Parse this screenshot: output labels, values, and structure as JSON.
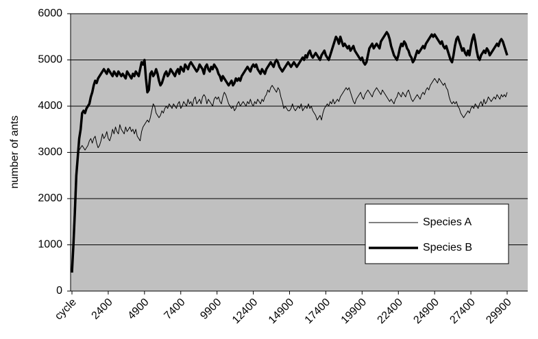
{
  "chart_data": {
    "type": "line",
    "ylabel": "number of ants",
    "categories": [
      "cycle",
      null,
      null,
      null,
      null,
      null,
      null,
      null,
      null,
      null,
      null,
      null,
      null,
      null,
      null,
      null,
      null,
      null,
      null,
      null,
      null,
      null,
      null,
      null,
      null,
      "2400",
      null,
      null,
      null,
      null,
      null,
      null,
      null,
      null,
      null,
      null,
      null,
      null,
      null,
      null,
      null,
      null,
      null,
      null,
      null,
      null,
      null,
      null,
      null,
      null,
      "4900",
      null,
      null,
      null,
      null,
      null,
      null,
      null,
      null,
      null,
      null,
      null,
      null,
      null,
      null,
      null,
      null,
      null,
      null,
      null,
      null,
      null,
      null,
      null,
      null,
      "7400",
      null,
      null,
      null,
      null,
      null,
      null,
      null,
      null,
      null,
      null,
      null,
      null,
      null,
      null,
      null,
      null,
      null,
      null,
      null,
      null,
      null,
      null,
      null,
      null,
      "9900",
      null,
      null,
      null,
      null,
      null,
      null,
      null,
      null,
      null,
      null,
      null,
      null,
      null,
      null,
      null,
      null,
      null,
      null,
      null,
      null,
      null,
      null,
      null,
      null,
      "12400",
      null,
      null,
      null,
      null,
      null,
      null,
      null,
      null,
      null,
      null,
      null,
      null,
      null,
      null,
      null,
      null,
      null,
      null,
      null,
      null,
      null,
      null,
      null,
      null,
      "14900",
      null,
      null,
      null,
      null,
      null,
      null,
      null,
      null,
      null,
      null,
      null,
      null,
      null,
      null,
      null,
      null,
      null,
      null,
      null,
      null,
      null,
      null,
      null,
      null,
      "17400",
      null,
      null,
      null,
      null,
      null,
      null,
      null,
      null,
      null,
      null,
      null,
      null,
      null,
      null,
      null,
      null,
      null,
      null,
      null,
      null,
      null,
      null,
      null,
      null,
      "19900",
      null,
      null,
      null,
      null,
      null,
      null,
      null,
      null,
      null,
      null,
      null,
      null,
      null,
      null,
      null,
      null,
      null,
      null,
      null,
      null,
      null,
      null,
      null,
      null,
      "22400",
      null,
      null,
      null,
      null,
      null,
      null,
      null,
      null,
      null,
      null,
      null,
      null,
      null,
      null,
      null,
      null,
      null,
      null,
      null,
      null,
      null,
      null,
      null,
      null,
      "24900",
      null,
      null,
      null,
      null,
      null,
      null,
      null,
      null,
      null,
      null,
      null,
      null,
      null,
      null,
      null,
      null,
      null,
      null,
      null,
      null,
      null,
      null,
      null,
      null,
      "27400",
      null,
      null,
      null,
      null,
      null,
      null,
      null,
      null,
      null,
      null,
      null,
      null,
      null,
      null,
      null,
      null,
      null,
      null,
      null,
      null,
      null,
      null,
      null,
      null,
      "29900"
    ],
    "series": [
      {
        "name": "Species A",
        "color": "#000000",
        "width": 1,
        "values": [
          400,
          1300,
          2100,
          2700,
          2900,
          3050,
          3100,
          3150,
          3100,
          3050,
          3100,
          3150,
          3250,
          3300,
          3200,
          3300,
          3350,
          3200,
          3100,
          3150,
          3250,
          3400,
          3300,
          3350,
          3450,
          3300,
          3250,
          3350,
          3500,
          3400,
          3550,
          3450,
          3400,
          3600,
          3500,
          3450,
          3400,
          3550,
          3450,
          3500,
          3550,
          3450,
          3500,
          3400,
          3500,
          3350,
          3300,
          3250,
          3450,
          3550,
          3600,
          3650,
          3700,
          3650,
          3750,
          3900,
          4050,
          4000,
          3850,
          3800,
          3750,
          3800,
          3900,
          3850,
          3950,
          4000,
          3950,
          4050,
          4000,
          3950,
          4050,
          4000,
          3950,
          4050,
          4100,
          3950,
          4000,
          4100,
          4050,
          4000,
          4150,
          4050,
          4100,
          4000,
          4150,
          4200,
          4050,
          4100,
          4150,
          4050,
          4200,
          4250,
          4200,
          4050,
          4150,
          4100,
          4050,
          4000,
          4150,
          4200,
          4150,
          4200,
          4100,
          4050,
          4200,
          4300,
          4250,
          4150,
          4050,
          4000,
          3950,
          4000,
          3900,
          3950,
          4050,
          4100,
          4000,
          4050,
          4100,
          4050,
          4000,
          4100,
          4050,
          4150,
          4050,
          4000,
          4100,
          4050,
          4150,
          4100,
          4050,
          4150,
          4100,
          4200,
          4250,
          4350,
          4300,
          4400,
          4450,
          4400,
          4350,
          4300,
          4400,
          4350,
          4200,
          4100,
          3950,
          4000,
          3950,
          3900,
          3900,
          3950,
          4050,
          3950,
          3900,
          3950,
          4000,
          3950,
          4050,
          3900,
          3950,
          4000,
          3950,
          4050,
          3950,
          4000,
          3900,
          3850,
          3800,
          3700,
          3750,
          3800,
          3700,
          3850,
          3950,
          4000,
          4050,
          4000,
          4100,
          4050,
          4150,
          4050,
          4100,
          4150,
          4100,
          4200,
          4250,
          4300,
          4350,
          4400,
          4350,
          4400,
          4300,
          4200,
          4100,
          4050,
          4150,
          4200,
          4250,
          4300,
          4200,
          4150,
          4250,
          4300,
          4350,
          4300,
          4250,
          4200,
          4300,
          4350,
          4400,
          4350,
          4300,
          4250,
          4350,
          4300,
          4250,
          4200,
          4150,
          4100,
          4150,
          4100,
          4050,
          4150,
          4200,
          4300,
          4250,
          4200,
          4300,
          4250,
          4200,
          4300,
          4350,
          4250,
          4150,
          4100,
          4150,
          4200,
          4250,
          4200,
          4150,
          4250,
          4300,
          4250,
          4350,
          4400,
          4350,
          4450,
          4500,
          4550,
          4600,
          4550,
          4500,
          4600,
          4550,
          4500,
          4450,
          4500,
          4400,
          4350,
          4200,
          4100,
          4050,
          4100,
          4050,
          4100,
          4000,
          3950,
          3850,
          3800,
          3750,
          3800,
          3850,
          3900,
          3850,
          3950,
          4000,
          3950,
          4050,
          4000,
          3950,
          4050,
          4100,
          4000,
          4150,
          4050,
          4100,
          4200,
          4150,
          4100,
          4150,
          4200,
          4150,
          4250,
          4200,
          4150,
          4250,
          4200,
          4250,
          4200,
          4300
        ]
      },
      {
        "name": "Species B",
        "color": "#000000",
        "width": 3.5,
        "values": [
          400,
          1000,
          1700,
          2500,
          2900,
          3300,
          3500,
          3850,
          3900,
          3850,
          3950,
          4000,
          4050,
          4200,
          4300,
          4450,
          4550,
          4500,
          4600,
          4650,
          4700,
          4750,
          4800,
          4750,
          4700,
          4800,
          4750,
          4700,
          4650,
          4750,
          4700,
          4650,
          4750,
          4700,
          4650,
          4700,
          4650,
          4600,
          4750,
          4700,
          4650,
          4600,
          4700,
          4650,
          4750,
          4700,
          4650,
          4800,
          4950,
          4900,
          5000,
          4600,
          4300,
          4350,
          4700,
          4750,
          4650,
          4700,
          4800,
          4700,
          4550,
          4450,
          4500,
          4600,
          4700,
          4750,
          4650,
          4700,
          4800,
          4750,
          4700,
          4650,
          4750,
          4800,
          4700,
          4850,
          4800,
          4750,
          4900,
          4850,
          4800,
          4900,
          4950,
          4900,
          4850,
          4800,
          4750,
          4800,
          4900,
          4850,
          4800,
          4700,
          4850,
          4900,
          4800,
          4750,
          4850,
          4800,
          4900,
          4850,
          4800,
          4700,
          4650,
          4550,
          4650,
          4600,
          4550,
          4500,
          4450,
          4500,
          4550,
          4450,
          4500,
          4600,
          4550,
          4600,
          4550,
          4650,
          4700,
          4750,
          4800,
          4850,
          4800,
          4750,
          4850,
          4900,
          4850,
          4900,
          4800,
          4750,
          4700,
          4800,
          4750,
          4700,
          4800,
          4850,
          4900,
          4950,
          4900,
          4850,
          4950,
          5000,
          4950,
          4850,
          4800,
          4750,
          4800,
          4850,
          4900,
          4950,
          4900,
          4850,
          4900,
          4950,
          4900,
          4850,
          4900,
          4950,
          5000,
          5050,
          5000,
          5100,
          5050,
          5150,
          5200,
          5100,
          5050,
          5100,
          5150,
          5100,
          5050,
          5000,
          5100,
          5150,
          5200,
          5100,
          5050,
          5000,
          5100,
          5200,
          5300,
          5400,
          5500,
          5450,
          5350,
          5500,
          5400,
          5300,
          5350,
          5300,
          5250,
          5300,
          5200,
          5250,
          5300,
          5200,
          5150,
          5100,
          5050,
          5000,
          5050,
          4950,
          4900,
          4950,
          5100,
          5250,
          5300,
          5350,
          5250,
          5300,
          5350,
          5300,
          5250,
          5400,
          5450,
          5500,
          5550,
          5600,
          5550,
          5450,
          5300,
          5200,
          5100,
          5050,
          5000,
          5100,
          5250,
          5350,
          5300,
          5400,
          5350,
          5250,
          5200,
          5100,
          5050,
          4950,
          5000,
          5100,
          5200,
          5150,
          5200,
          5250,
          5300,
          5250,
          5350,
          5400,
          5450,
          5500,
          5550,
          5500,
          5550,
          5500,
          5450,
          5400,
          5350,
          5400,
          5300,
          5250,
          5300,
          5200,
          5100,
          5000,
          4950,
          5100,
          5300,
          5450,
          5500,
          5400,
          5300,
          5200,
          5250,
          5150,
          5100,
          5200,
          5100,
          5300,
          5450,
          5550,
          5400,
          5200,
          5050,
          5000,
          5100,
          5150,
          5200,
          5150,
          5250,
          5200,
          5100,
          5150,
          5200,
          5250,
          5300,
          5350,
          5300,
          5400,
          5450,
          5400,
          5300,
          5200,
          5100
        ]
      }
    ],
    "ylim": [
      0,
      6000
    ],
    "yticks": [
      0,
      1000,
      2000,
      3000,
      4000,
      5000,
      6000
    ],
    "grid": true,
    "legend": "lower right",
    "plot_color": "#c0c0c0"
  }
}
